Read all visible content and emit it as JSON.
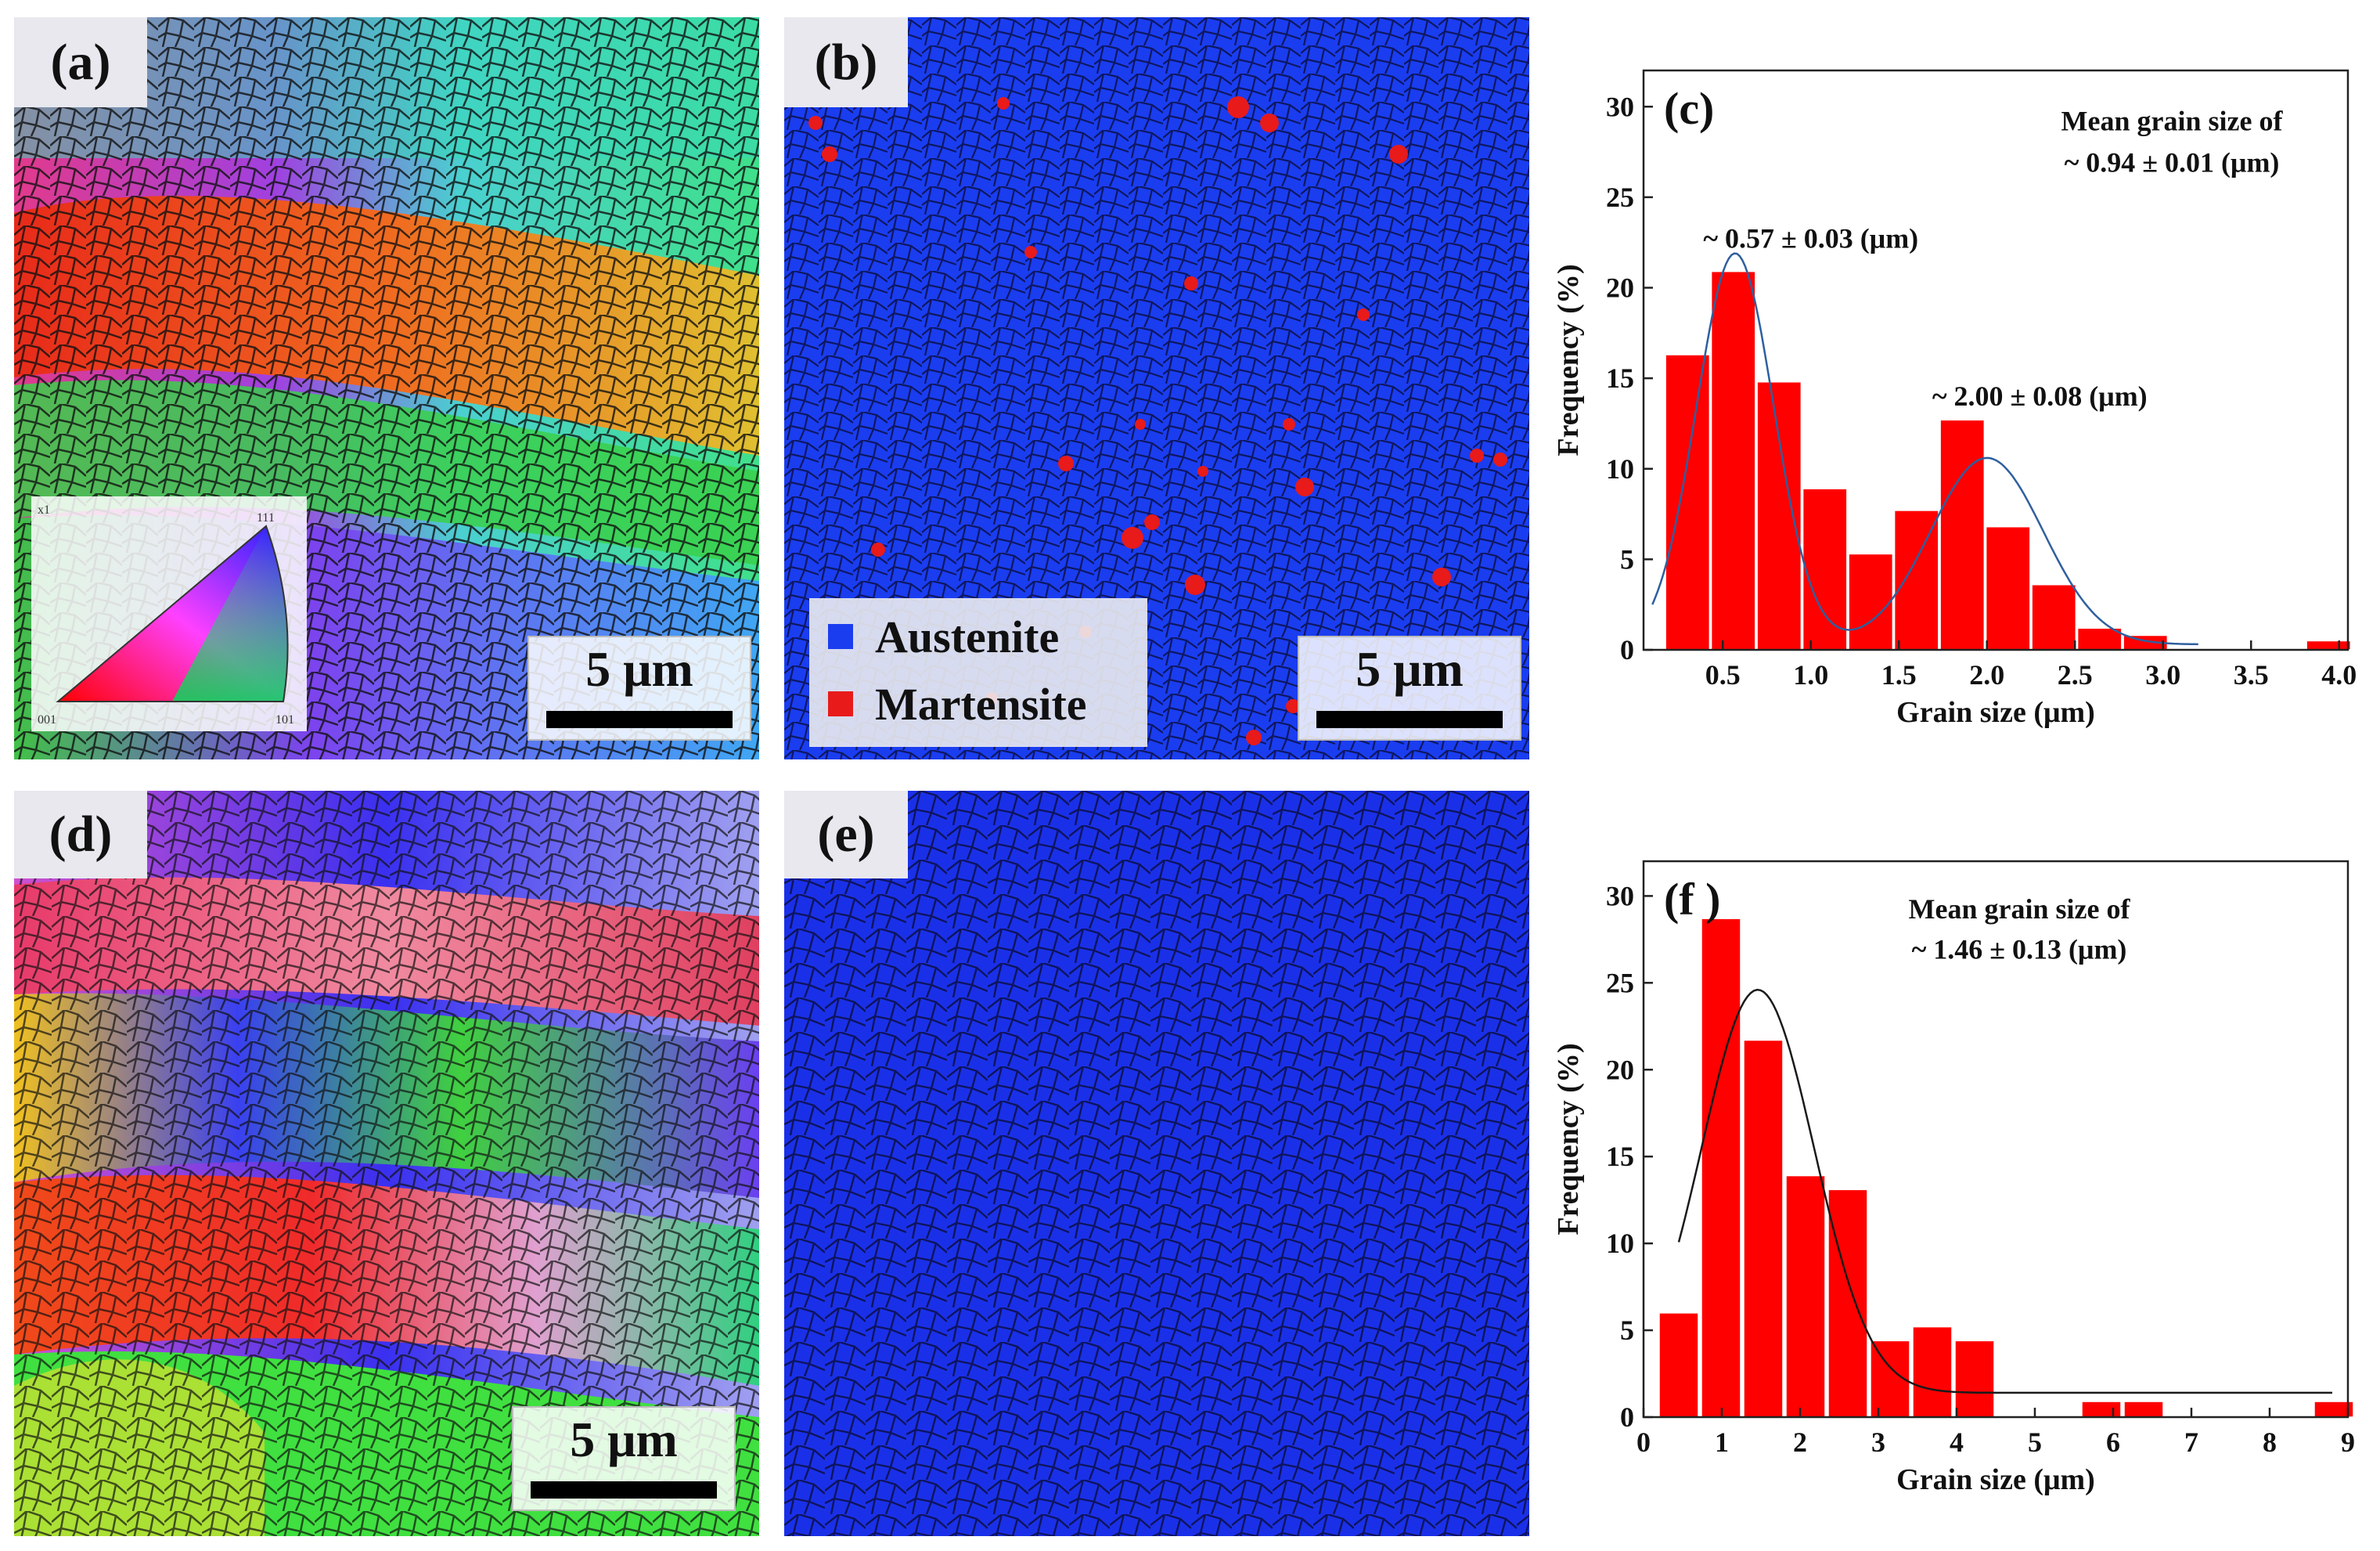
{
  "panels": {
    "a": {
      "label": "(a)",
      "scale": "5 μm",
      "ipf": {
        "corner_x": "x1",
        "v111": "111",
        "v001": "001",
        "v101": "101"
      }
    },
    "b": {
      "label": "(b)",
      "scale": "5 μm",
      "legend": [
        {
          "name": "Austenite",
          "color": "#1a3df0"
        },
        {
          "name": "Martensite",
          "color": "#e81a1a"
        }
      ]
    },
    "d": {
      "label": "(d)",
      "scale": "5 μm"
    },
    "e": {
      "label": "(e)"
    }
  },
  "chart_data": [
    {
      "id": "c",
      "type": "bar",
      "panel_label": "(c)",
      "xlabel": "Grain size (μm)",
      "ylabel": "Frequency (%)",
      "xlim": [
        0.05,
        4.05
      ],
      "ylim": [
        0,
        32
      ],
      "xticks": [
        0.5,
        1.0,
        1.5,
        2.0,
        2.5,
        3.0,
        3.5,
        4.0
      ],
      "xtick_labels": [
        "0.5",
        "1.0",
        "1.5",
        "2.0",
        "2.5",
        "3.0",
        "3.5",
        "4.0"
      ],
      "yticks": [
        0,
        5,
        10,
        15,
        20,
        25,
        30
      ],
      "bar_width": 0.25,
      "x": [
        0.3,
        0.56,
        0.82,
        1.08,
        1.34,
        1.6,
        1.86,
        2.12,
        2.38,
        2.64,
        2.9,
        3.16,
        3.42,
        3.94
      ],
      "values": [
        16.3,
        20.9,
        14.8,
        8.9,
        5.3,
        7.7,
        12.7,
        6.8,
        3.6,
        1.2,
        0.8,
        0.0,
        0.0,
        0.5
      ],
      "bar_color": "#ff0000",
      "fit": {
        "type": "bimodal",
        "peaks": [
          {
            "mu": 0.57,
            "sigma": 0.22,
            "amp": 21.6
          },
          {
            "mu": 2.0,
            "sigma": 0.32,
            "amp": 10.3
          }
        ],
        "baseline": 0.3,
        "x_range": [
          0.1,
          3.2
        ],
        "color": "#2f5f9f"
      },
      "annotations": [
        {
          "text": "Mean grain size of",
          "x": 3.05,
          "y": 28.7
        },
        {
          "text": "~ 0.94 ± 0.01  (μm)",
          "x": 3.05,
          "y": 26.4
        },
        {
          "text": "~ 0.57 ± 0.03  (μm)",
          "x": 1.0,
          "y": 22.2
        },
        {
          "text": "~ 2.00 ± 0.08  (μm)",
          "x": 2.3,
          "y": 13.5
        }
      ]
    },
    {
      "id": "f",
      "type": "bar",
      "panel_label": "(f )",
      "xlabel": "Grain size (μm)",
      "ylabel": "Frequency (%)",
      "xlim": [
        0,
        9
      ],
      "ylim": [
        0,
        32
      ],
      "xticks": [
        0,
        1,
        2,
        3,
        4,
        5,
        6,
        7,
        8,
        9
      ],
      "xtick_labels": [
        "0",
        "1",
        "2",
        "3",
        "4",
        "5",
        "6",
        "7",
        "8",
        "9"
      ],
      "yticks": [
        0,
        5,
        10,
        15,
        20,
        25,
        30
      ],
      "bar_width": 0.5,
      "x": [
        0.45,
        0.99,
        1.53,
        2.07,
        2.61,
        3.15,
        3.69,
        4.23,
        5.85,
        6.39,
        8.82
      ],
      "values": [
        6.0,
        28.7,
        21.7,
        13.9,
        13.1,
        4.4,
        5.2,
        4.4,
        0.9,
        0.9,
        0.9
      ],
      "bar_color": "#ff0000",
      "fit": {
        "type": "gaussian",
        "peaks": [
          {
            "mu": 1.46,
            "sigma": 0.72,
            "amp": 23.2
          }
        ],
        "baseline": 1.4,
        "x_range": [
          0.45,
          8.8
        ],
        "color": "#1a1a1a"
      },
      "annotations": [
        {
          "text": "Mean grain size of",
          "x": 4.8,
          "y": 28.7
        },
        {
          "text": "~ 1.46 ± 0.13  (μm)",
          "x": 4.8,
          "y": 26.4
        }
      ]
    }
  ]
}
